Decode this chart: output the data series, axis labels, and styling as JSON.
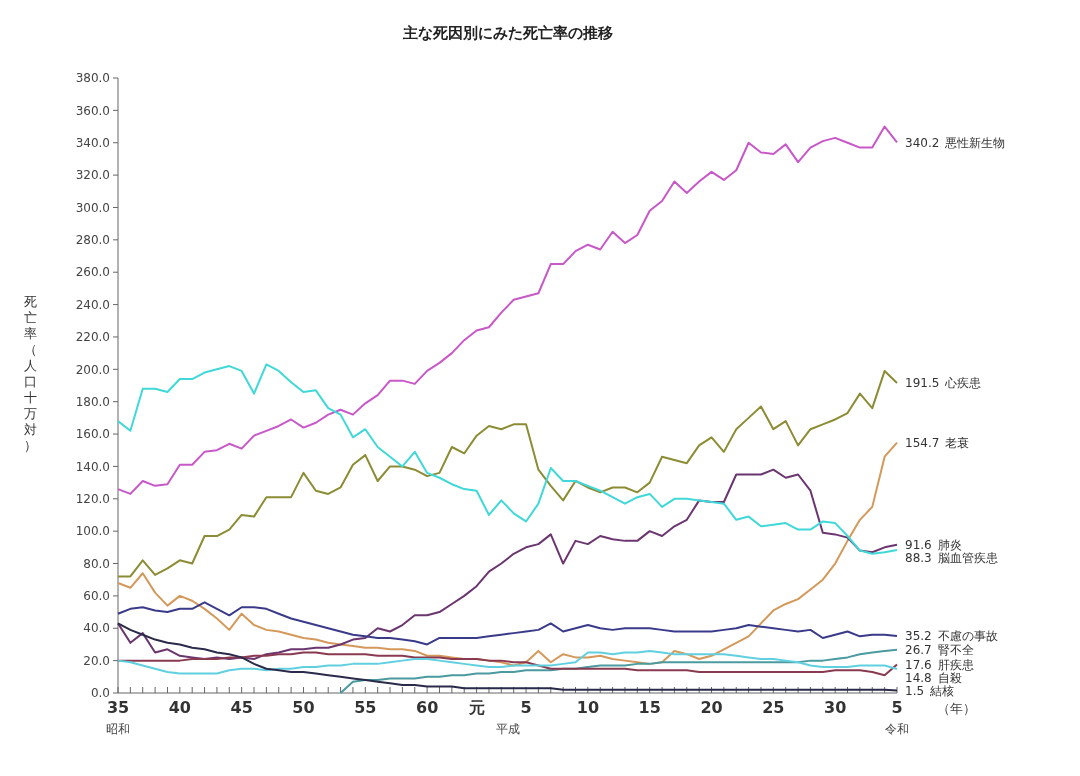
{
  "chart_data": {
    "type": "line",
    "title": "主な死因別にみた死亡率の推移",
    "xlabel": "（年）",
    "ylabel": "死亡率（人口十万対）",
    "categories": [
      "35",
      null,
      null,
      null,
      null,
      "40",
      null,
      null,
      null,
      null,
      "45",
      null,
      null,
      null,
      null,
      "50",
      null,
      null,
      null,
      null,
      "55",
      null,
      null,
      null,
      null,
      "60",
      null,
      null,
      null,
      "元",
      null,
      null,
      null,
      "5",
      null,
      null,
      null,
      null,
      "10",
      null,
      null,
      null,
      null,
      "15",
      null,
      null,
      null,
      null,
      "20",
      null,
      null,
      null,
      null,
      "25",
      null,
      null,
      null,
      null,
      "30",
      null,
      null,
      null,
      null,
      "5"
    ],
    "ylim": [
      0,
      380
    ],
    "yticks": [
      {
        "value": 0,
        "label": "0.0"
      },
      {
        "value": 20,
        "label": "20.0"
      },
      {
        "value": 40,
        "label": "40.0"
      },
      {
        "value": 60,
        "label": "60.0"
      },
      {
        "value": 80,
        "label": "80.0"
      },
      {
        "value": 100,
        "label": "100.0"
      },
      {
        "value": 120,
        "label": "120.0"
      },
      {
        "value": 140,
        "label": "140.0"
      },
      {
        "value": 160,
        "label": "160.0"
      },
      {
        "value": 180,
        "label": "180.0"
      },
      {
        "value": 200,
        "label": "200.0"
      },
      {
        "value": 220,
        "label": "220.0"
      },
      {
        "value": 240,
        "label": "240.0"
      },
      {
        "value": 260,
        "label": "260.0"
      },
      {
        "value": 280,
        "label": "280.0"
      },
      {
        "value": 300,
        "label": "300.0"
      },
      {
        "value": 320,
        "label": "320.0"
      },
      {
        "value": 340,
        "label": "340.0"
      },
      {
        "value": 360,
        "label": "360.0"
      },
      {
        "value": 380,
        "label": "380.0"
      }
    ],
    "grid": false,
    "legend": false,
    "annotations": [
      "昭和",
      "平成",
      "令和"
    ],
    "series": [
      {
        "name": "悪性新生物",
        "color": "#c858c8",
        "values": [
          126,
          123,
          131,
          128,
          129,
          141,
          141,
          149,
          150,
          154,
          151,
          159,
          162,
          165,
          169,
          164,
          167,
          172,
          175,
          172,
          179,
          184,
          193,
          193,
          191,
          199,
          204,
          210,
          218,
          224,
          226,
          235,
          243,
          245,
          247,
          265,
          265,
          273,
          277,
          274,
          285,
          278,
          283,
          298,
          304,
          316,
          309,
          316,
          322,
          317,
          323,
          340,
          334,
          333,
          339,
          328,
          337,
          341,
          343,
          340,
          337,
          337,
          350,
          340.2
        ],
        "value_labels": [
          null,
          null,
          null,
          null,
          null,
          null,
          null,
          null,
          null,
          null,
          null,
          null,
          null,
          null,
          null,
          null,
          null,
          null,
          null,
          null,
          null,
          null,
          null,
          null,
          null,
          null,
          null,
          null,
          null,
          null,
          null,
          null,
          null,
          null,
          null,
          null,
          null,
          null,
          null,
          null,
          null,
          null,
          null,
          null,
          null,
          null,
          null,
          null,
          null,
          null,
          null,
          null,
          null,
          null,
          null,
          null,
          null,
          null,
          null,
          null,
          null,
          null,
          null,
          "340.2"
        ]
      },
      {
        "name": "心疾患",
        "color": "#8c8c34",
        "values": [
          72,
          72,
          82,
          73,
          77,
          82,
          80,
          97,
          97,
          101,
          110,
          109,
          121,
          121,
          121,
          136,
          125,
          123,
          127,
          141,
          147,
          131,
          140,
          140,
          138,
          134,
          136,
          152,
          148,
          159,
          165,
          163,
          166,
          166,
          138,
          128,
          119,
          131,
          127,
          124,
          127,
          127,
          124,
          130,
          146,
          144,
          142,
          153,
          158,
          149,
          163,
          170,
          177,
          163,
          168,
          153,
          163,
          166,
          169,
          173,
          185,
          176,
          199,
          191.5
        ],
        "value_labels": [
          null,
          null,
          null,
          null,
          null,
          null,
          null,
          null,
          null,
          null,
          null,
          null,
          null,
          null,
          null,
          null,
          null,
          null,
          null,
          null,
          null,
          null,
          null,
          null,
          null,
          null,
          null,
          null,
          null,
          null,
          null,
          null,
          null,
          null,
          null,
          null,
          null,
          null,
          null,
          null,
          null,
          null,
          null,
          null,
          null,
          null,
          null,
          null,
          null,
          null,
          null,
          null,
          null,
          null,
          null,
          null,
          null,
          null,
          null,
          null,
          null,
          null,
          null,
          "191.5"
        ]
      },
      {
        "name": "老衰",
        "color": "#d4995a",
        "values": [
          68,
          65,
          74,
          62,
          54,
          60,
          57,
          52,
          46,
          39,
          49,
          42,
          39,
          38,
          36,
          34,
          33,
          31,
          30,
          29,
          28,
          28,
          27,
          27,
          26,
          23,
          23,
          22,
          21,
          21,
          20,
          19,
          17,
          19,
          26,
          19,
          24,
          22,
          22,
          23,
          21,
          20,
          19,
          18,
          19,
          26,
          24,
          21,
          23,
          27,
          31,
          35,
          43,
          51,
          55,
          58,
          64,
          70,
          80,
          94,
          107,
          115,
          146,
          154.7
        ],
        "value_labels": [
          null,
          null,
          null,
          null,
          null,
          null,
          null,
          null,
          null,
          null,
          null,
          null,
          null,
          null,
          null,
          null,
          null,
          null,
          null,
          null,
          null,
          null,
          null,
          null,
          null,
          null,
          null,
          null,
          null,
          null,
          null,
          null,
          null,
          null,
          null,
          null,
          null,
          null,
          null,
          null,
          null,
          null,
          null,
          null,
          null,
          null,
          null,
          null,
          null,
          null,
          null,
          null,
          null,
          null,
          null,
          null,
          null,
          null,
          null,
          null,
          null,
          null,
          null,
          "154.7"
        ]
      },
      {
        "name": "肺炎",
        "color": "#6b3570",
        "values": [
          43,
          31,
          37,
          25,
          27,
          23,
          22,
          21,
          22,
          21,
          22,
          21,
          24,
          25,
          27,
          27,
          28,
          28,
          30,
          33,
          34,
          40,
          38,
          42,
          48,
          48,
          50,
          55,
          60,
          66,
          75,
          80,
          86,
          90,
          92,
          98,
          80,
          94,
          92,
          97,
          95,
          94,
          94,
          100,
          97,
          103,
          107,
          119,
          118,
          118,
          135,
          135,
          135,
          138,
          133,
          135,
          125,
          99,
          98,
          96,
          88,
          87,
          90,
          91.6
        ],
        "value_labels": [
          null,
          null,
          null,
          null,
          null,
          null,
          null,
          null,
          null,
          null,
          null,
          null,
          null,
          null,
          null,
          null,
          null,
          null,
          null,
          null,
          null,
          null,
          null,
          null,
          null,
          null,
          null,
          null,
          null,
          null,
          null,
          null,
          null,
          null,
          null,
          null,
          null,
          null,
          null,
          null,
          null,
          null,
          null,
          null,
          null,
          null,
          null,
          null,
          null,
          null,
          null,
          null,
          null,
          null,
          null,
          null,
          null,
          null,
          null,
          null,
          null,
          null,
          null,
          "91.6"
        ]
      },
      {
        "name": "脳血管疾患",
        "color": "#40d8d8",
        "values": [
          168,
          162,
          188,
          188,
          186,
          194,
          194,
          198,
          200,
          202,
          199,
          185,
          203,
          199,
          192,
          186,
          187,
          176,
          172,
          158,
          163,
          152,
          146,
          140,
          149,
          136,
          133,
          129,
          126,
          125,
          110,
          119,
          111,
          106,
          117,
          139,
          131,
          131,
          128,
          125,
          121,
          117,
          121,
          123,
          115,
          120,
          120,
          119,
          118,
          117,
          107,
          109,
          103,
          104,
          105,
          101,
          101,
          106,
          105,
          97,
          88,
          86,
          87,
          88.3
        ],
        "value_labels": [
          null,
          null,
          null,
          null,
          null,
          null,
          null,
          null,
          null,
          null,
          null,
          null,
          null,
          null,
          null,
          null,
          null,
          null,
          null,
          null,
          null,
          null,
          null,
          null,
          null,
          null,
          null,
          null,
          null,
          null,
          null,
          null,
          null,
          null,
          null,
          null,
          null,
          null,
          null,
          null,
          null,
          null,
          null,
          null,
          null,
          null,
          null,
          null,
          null,
          null,
          null,
          null,
          null,
          null,
          null,
          null,
          null,
          null,
          null,
          null,
          null,
          null,
          null,
          "88.3"
        ]
      },
      {
        "name": "不慮の事故",
        "color": "#3a3a8a",
        "values": [
          49,
          52,
          53,
          51,
          50,
          52,
          52,
          56,
          52,
          48,
          53,
          53,
          52,
          49,
          46,
          44,
          42,
          40,
          38,
          36,
          35,
          34,
          34,
          33,
          32,
          30,
          34,
          34,
          34,
          34,
          35,
          36,
          37,
          38,
          39,
          43,
          38,
          40,
          42,
          40,
          39,
          40,
          40,
          40,
          39,
          38,
          38,
          38,
          38,
          39,
          40,
          42,
          41,
          40,
          39,
          38,
          39,
          34,
          36,
          38,
          35,
          36,
          36,
          35.2
        ],
        "value_labels": [
          null,
          null,
          null,
          null,
          null,
          null,
          null,
          null,
          null,
          null,
          null,
          null,
          null,
          null,
          null,
          null,
          null,
          null,
          null,
          null,
          null,
          null,
          null,
          null,
          null,
          null,
          null,
          null,
          null,
          null,
          null,
          null,
          null,
          null,
          null,
          null,
          null,
          null,
          null,
          null,
          null,
          null,
          null,
          null,
          null,
          null,
          null,
          null,
          null,
          null,
          null,
          null,
          null,
          null,
          null,
          null,
          null,
          null,
          null,
          null,
          null,
          null,
          null,
          "35.2"
        ]
      },
      {
        "name": "腎不全",
        "color": "#4a9aa0",
        "values": [
          null,
          null,
          null,
          null,
          null,
          null,
          null,
          null,
          null,
          null,
          null,
          null,
          null,
          null,
          null,
          null,
          null,
          null,
          0,
          7,
          8,
          8,
          9,
          9,
          9,
          10,
          10,
          11,
          11,
          12,
          12,
          13,
          13,
          14,
          14,
          14,
          15,
          15,
          16,
          17,
          17,
          17,
          18,
          18,
          19,
          19,
          19,
          19,
          19,
          19,
          19,
          19,
          19,
          19,
          19,
          19,
          20,
          20,
          21,
          22,
          24,
          25,
          26,
          26.7
        ],
        "value_labels": [
          null,
          null,
          null,
          null,
          null,
          null,
          null,
          null,
          null,
          null,
          null,
          null,
          null,
          null,
          null,
          null,
          null,
          null,
          null,
          null,
          null,
          null,
          null,
          null,
          null,
          null,
          null,
          null,
          null,
          null,
          null,
          null,
          null,
          null,
          null,
          null,
          null,
          null,
          null,
          null,
          null,
          null,
          null,
          null,
          null,
          null,
          null,
          null,
          null,
          null,
          null,
          null,
          null,
          null,
          null,
          null,
          null,
          null,
          null,
          null,
          null,
          null,
          null,
          "26.7"
        ]
      },
      {
        "name": "肝疾患",
        "color": "#8a3a50",
        "values": [
          20,
          20,
          20,
          20,
          20,
          20,
          21,
          21,
          21,
          22,
          22,
          23,
          23,
          24,
          24,
          25,
          25,
          24,
          24,
          24,
          24,
          23,
          23,
          23,
          22,
          22,
          22,
          21,
          21,
          21,
          20,
          20,
          19,
          19,
          17,
          15,
          15,
          15,
          15,
          15,
          15,
          15,
          14,
          14,
          14,
          14,
          14,
          13,
          13,
          13,
          13,
          13,
          13,
          13,
          13,
          13,
          13,
          13,
          14,
          14,
          14,
          13,
          11,
          17.6
        ],
        "value_labels": [
          null,
          null,
          null,
          null,
          null,
          null,
          null,
          null,
          null,
          null,
          null,
          null,
          null,
          null,
          null,
          null,
          null,
          null,
          null,
          null,
          null,
          null,
          null,
          null,
          null,
          null,
          null,
          null,
          null,
          null,
          null,
          null,
          null,
          null,
          null,
          null,
          null,
          null,
          null,
          null,
          null,
          null,
          null,
          null,
          null,
          null,
          null,
          null,
          null,
          null,
          null,
          null,
          null,
          null,
          null,
          null,
          null,
          null,
          null,
          null,
          null,
          null,
          null,
          "17.6"
        ]
      },
      {
        "name": "自殺",
        "color": "#60d0e0",
        "values": [
          20,
          19,
          17,
          15,
          13,
          12,
          12,
          12,
          12,
          14,
          15,
          15,
          14,
          15,
          15,
          16,
          16,
          17,
          17,
          18,
          18,
          18,
          19,
          20,
          21,
          21,
          20,
          19,
          18,
          17,
          16,
          16,
          17,
          17,
          17,
          17,
          18,
          19,
          25,
          25,
          24,
          25,
          25,
          26,
          25,
          24,
          24,
          24,
          24,
          24,
          23,
          22,
          21,
          21,
          20,
          19,
          17,
          16,
          16,
          16,
          17,
          17,
          17,
          14.8
        ],
        "value_labels": [
          null,
          null,
          null,
          null,
          null,
          null,
          null,
          null,
          null,
          null,
          null,
          null,
          null,
          null,
          null,
          null,
          null,
          null,
          null,
          null,
          null,
          null,
          null,
          null,
          null,
          null,
          null,
          null,
          null,
          null,
          null,
          null,
          null,
          null,
          null,
          null,
          null,
          null,
          null,
          null,
          null,
          null,
          null,
          null,
          null,
          null,
          null,
          null,
          null,
          null,
          null,
          null,
          null,
          null,
          null,
          null,
          null,
          null,
          null,
          null,
          null,
          null,
          null,
          "14.8"
        ]
      },
      {
        "name": "結核",
        "color": "#2a2a4a",
        "values": [
          43,
          39,
          36,
          33,
          31,
          30,
          28,
          27,
          25,
          24,
          22,
          18,
          15,
          14,
          13,
          13,
          12,
          11,
          10,
          9,
          8,
          7,
          6,
          5,
          5,
          4,
          4,
          4,
          3,
          3,
          3,
          3,
          3,
          3,
          3,
          3,
          2,
          2,
          2,
          2,
          2,
          2,
          2,
          2,
          2,
          2,
          2,
          2,
          2,
          2,
          2,
          2,
          2,
          2,
          2,
          2,
          2,
          2,
          2,
          2,
          2,
          2,
          2,
          1.5
        ],
        "value_labels": [
          null,
          null,
          null,
          null,
          null,
          null,
          null,
          null,
          null,
          null,
          null,
          null,
          null,
          null,
          null,
          null,
          null,
          null,
          null,
          null,
          null,
          null,
          null,
          null,
          null,
          null,
          null,
          null,
          null,
          null,
          null,
          null,
          null,
          null,
          null,
          null,
          null,
          null,
          null,
          null,
          null,
          null,
          null,
          null,
          null,
          null,
          null,
          null,
          null,
          null,
          null,
          null,
          null,
          null,
          null,
          null,
          null,
          null,
          null,
          null,
          null,
          null,
          null,
          "1.5"
        ]
      }
    ]
  }
}
